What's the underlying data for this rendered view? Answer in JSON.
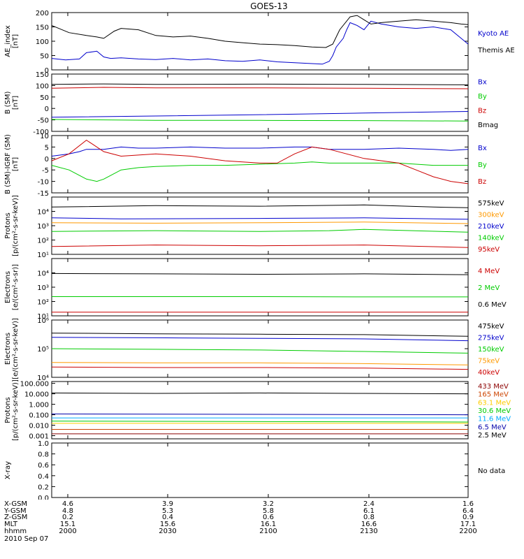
{
  "title": "GOES-13",
  "footer": {
    "date": "2010 Sep 07",
    "rows": [
      {
        "label": "X-GSM",
        "values": [
          "4.6",
          "3.9",
          "3.2",
          "2.4",
          "1.6"
        ]
      },
      {
        "label": "Y-GSM",
        "values": [
          "4.8",
          "5.3",
          "5.8",
          "6.1",
          "6.4"
        ]
      },
      {
        "label": "Z-GSM",
        "values": [
          "0.2",
          "0.4",
          "0.6",
          "0.8",
          "0.9"
        ]
      },
      {
        "label": "MLT",
        "values": [
          "15.1",
          "15.6",
          "16.1",
          "16.6",
          "17.1"
        ]
      },
      {
        "label": "hhmm",
        "values": [
          "2000",
          "2030",
          "2100",
          "2130",
          "2200"
        ]
      }
    ]
  },
  "chart_data": [
    {
      "type": "line",
      "id": "ae",
      "ylabel": "AE_index\n[nT]",
      "ylim": [
        0,
        200
      ],
      "yticks": [
        "0",
        "50",
        "100",
        "150",
        "200"
      ],
      "x_range": [
        "2000",
        "2200"
      ],
      "series": [
        {
          "name": "Kyoto AE",
          "color": "#0000cc",
          "x": [
            0,
            4,
            8,
            10,
            13,
            15,
            17,
            20,
            25,
            30,
            35,
            40,
            45,
            50,
            55,
            60,
            65,
            70,
            75,
            78,
            80,
            81,
            82,
            84,
            85,
            86,
            88,
            90,
            92,
            95,
            100,
            105,
            110,
            115,
            118,
            120
          ],
          "values": [
            40,
            35,
            38,
            60,
            65,
            45,
            40,
            42,
            38,
            36,
            40,
            35,
            38,
            32,
            30,
            35,
            28,
            25,
            22,
            20,
            30,
            50,
            80,
            110,
            140,
            165,
            155,
            140,
            170,
            160,
            150,
            145,
            150,
            140,
            110,
            90
          ]
        },
        {
          "name": "Themis AE",
          "color": "#000000",
          "x": [
            0,
            5,
            10,
            13,
            15,
            18,
            20,
            25,
            30,
            35,
            40,
            45,
            50,
            55,
            60,
            65,
            70,
            75,
            79,
            81,
            83,
            86,
            88,
            90,
            92,
            95,
            100,
            105,
            110,
            115,
            118,
            120
          ],
          "values": [
            155,
            130,
            120,
            115,
            110,
            135,
            145,
            140,
            120,
            115,
            118,
            110,
            100,
            95,
            90,
            88,
            85,
            80,
            78,
            90,
            140,
            185,
            190,
            175,
            160,
            165,
            170,
            175,
            170,
            165,
            160,
            158
          ]
        }
      ]
    },
    {
      "type": "line",
      "id": "b",
      "ylabel": "B (SM)\n[nT]",
      "ylim": [
        -100,
        150
      ],
      "yticks": [
        "-100",
        "-50",
        "0",
        "50",
        "100",
        "150"
      ],
      "series": [
        {
          "name": "Bx",
          "color": "#0000cc",
          "x": [
            0,
            30,
            60,
            90,
            120
          ],
          "values": [
            -38,
            -33,
            -27,
            -20,
            -13
          ]
        },
        {
          "name": "By",
          "color": "#00cc00",
          "x": [
            0,
            30,
            60,
            90,
            120
          ],
          "values": [
            -48,
            -52,
            -52,
            -53,
            -55
          ]
        },
        {
          "name": "Bz",
          "color": "#cc0000",
          "x": [
            0,
            15,
            30,
            60,
            90,
            120
          ],
          "values": [
            88,
            92,
            90,
            90,
            88,
            86
          ]
        },
        {
          "name": "Bmag",
          "color": "#000000",
          "x": [
            0,
            15,
            30,
            60,
            90,
            120
          ],
          "values": [
            105,
            107,
            105,
            106,
            105,
            103
          ]
        }
      ]
    },
    {
      "type": "line",
      "id": "dbigrf",
      "ylabel": "B (SM)-IGRF (SM)\n[nT]",
      "ylim": [
        -15,
        10
      ],
      "yticks": [
        "-15",
        "-10",
        "-5",
        "0",
        "5",
        "10"
      ],
      "series": [
        {
          "name": "Bx",
          "color": "#0000cc",
          "x": [
            0,
            5,
            8,
            10,
            15,
            20,
            25,
            30,
            40,
            50,
            60,
            70,
            75,
            80,
            90,
            100,
            110,
            115,
            120
          ],
          "values": [
            1,
            2,
            3,
            4,
            4,
            5,
            4.5,
            4.5,
            5,
            4.5,
            4.5,
            5,
            5,
            4,
            4,
            4.5,
            4,
            3.5,
            4
          ]
        },
        {
          "name": "By",
          "color": "#00cc00",
          "x": [
            0,
            5,
            10,
            13,
            15,
            20,
            25,
            30,
            40,
            50,
            60,
            70,
            75,
            80,
            90,
            100,
            110,
            120
          ],
          "values": [
            -3,
            -5,
            -9,
            -10,
            -9,
            -5,
            -4,
            -3.5,
            -3,
            -3,
            -2.5,
            -2,
            -1.5,
            -2,
            -2,
            -2,
            -3,
            -3
          ]
        },
        {
          "name": "Bz",
          "color": "#cc0000",
          "x": [
            0,
            5,
            10,
            12,
            15,
            20,
            25,
            30,
            35,
            40,
            50,
            55,
            60,
            65,
            70,
            75,
            80,
            90,
            100,
            105,
            110,
            115,
            120
          ],
          "values": [
            -1,
            2,
            8,
            6,
            3,
            1,
            1.5,
            2,
            1.5,
            1,
            -1,
            -1.5,
            -2,
            -2,
            2,
            5,
            4,
            0,
            -2,
            -5,
            -8,
            -10,
            -11
          ]
        }
      ]
    },
    {
      "type": "line",
      "id": "protons_low",
      "ylabel": "Protons\n[p/(cm²-s-sr-keV)]",
      "yscale": "log",
      "ylim": [
        10,
        100000
      ],
      "yticks": [
        "10¹",
        "10²",
        "10³",
        "10⁴"
      ],
      "series": [
        {
          "name": "575keV",
          "color": "#000000",
          "x": [
            0,
            30,
            60,
            90,
            110,
            120
          ],
          "values": [
            20000,
            25000,
            23000,
            28000,
            20000,
            18000
          ]
        },
        {
          "name": "300keV",
          "color": "#ff9900",
          "x": [
            0,
            30,
            60,
            90,
            120
          ],
          "values": [
            1600,
            1500,
            1600,
            1800,
            1400
          ]
        },
        {
          "name": "210keV",
          "color": "#0000cc",
          "x": [
            0,
            20,
            60,
            90,
            120
          ],
          "values": [
            3500,
            3000,
            3200,
            3500,
            2800
          ]
        },
        {
          "name": "140keV",
          "color": "#00cc00",
          "x": [
            0,
            30,
            60,
            80,
            90,
            120
          ],
          "values": [
            400,
            450,
            400,
            450,
            550,
            350
          ]
        },
        {
          "name": "95keV",
          "color": "#cc0000",
          "x": [
            0,
            30,
            60,
            90,
            120
          ],
          "values": [
            35,
            45,
            40,
            45,
            30
          ]
        }
      ]
    },
    {
      "type": "line",
      "id": "electrons_high",
      "ylabel": "Electrons\n[e/(cm²-s-sr)]",
      "yscale": "log",
      "ylim": [
        10,
        100000
      ],
      "yticks": [
        "10¹",
        "10²",
        "10³",
        "10⁴"
      ],
      "series": [
        {
          "name": "4 MeV",
          "color": "#cc0000",
          "x": [
            0,
            30,
            60,
            90,
            120
          ],
          "values": [
            18,
            18,
            18,
            18,
            18
          ]
        },
        {
          "name": "2 MeV",
          "color": "#00cc00",
          "x": [
            0,
            30,
            60,
            90,
            120
          ],
          "values": [
            220,
            220,
            220,
            210,
            210
          ]
        },
        {
          "name": "0.6 MeV",
          "color": "#000000",
          "x": [
            0,
            30,
            60,
            90,
            120
          ],
          "values": [
            9000,
            8500,
            8000,
            8500,
            7500
          ]
        }
      ]
    },
    {
      "type": "line",
      "id": "electrons_low",
      "ylabel": "Electrons\n[e/(cm²-s-sr-keV)]",
      "yscale": "log",
      "ylim": [
        10000,
        1000000
      ],
      "yticks": [
        "10⁴",
        "10⁵",
        "10⁶"
      ],
      "series": [
        {
          "name": "475keV",
          "color": "#000000",
          "x": [
            0,
            30,
            60,
            90,
            120
          ],
          "values": [
            350000,
            330000,
            320000,
            310000,
            270000
          ]
        },
        {
          "name": "275keV",
          "color": "#0000cc",
          "x": [
            0,
            30,
            60,
            90,
            120
          ],
          "values": [
            250000,
            240000,
            230000,
            220000,
            190000
          ]
        },
        {
          "name": "150keV",
          "color": "#00cc00",
          "x": [
            0,
            30,
            60,
            90,
            120
          ],
          "values": [
            100000,
            95000,
            90000,
            80000,
            70000
          ]
        },
        {
          "name": "75keV",
          "color": "#ff9900",
          "x": [
            0,
            30,
            60,
            90,
            120
          ],
          "values": [
            33000,
            32000,
            32000,
            30000,
            27000
          ]
        },
        {
          "name": "40keV",
          "color": "#cc0000",
          "x": [
            0,
            30,
            60,
            90,
            120
          ],
          "values": [
            23000,
            22000,
            22000,
            21000,
            19000
          ]
        }
      ]
    },
    {
      "type": "line",
      "id": "protons_high",
      "ylabel": "Protons\n[p/(cm²-s-sr-keV)]",
      "yscale": "log",
      "ylim": [
        0.0005,
        150
      ],
      "yticks": [
        "0.001",
        "0.010",
        "0.100",
        "1.000",
        "10.000",
        "100.000"
      ],
      "series": [
        {
          "name": "433 MeV",
          "color": "#8b0000",
          "x": [
            0,
            120
          ],
          "values": [
            0.0015,
            0.0015
          ]
        },
        {
          "name": "165 MeV",
          "color": "#cc4400",
          "x": [
            0,
            120
          ],
          "values": [
            0.004,
            0.004
          ]
        },
        {
          "name": "63.1 MeV",
          "color": "#ffcc00",
          "x": [
            0,
            120
          ],
          "values": [
            0.015,
            0.015
          ]
        },
        {
          "name": "30.6 MeV",
          "color": "#00cc00",
          "x": [
            0,
            120
          ],
          "values": [
            0.025,
            0.02
          ]
        },
        {
          "name": "11.6 MeV",
          "color": "#00aaff",
          "x": [
            0,
            120
          ],
          "values": [
            0.05,
            0.05
          ]
        },
        {
          "name": "6.5 MeV",
          "color": "#0000aa",
          "x": [
            0,
            120
          ],
          "values": [
            0.12,
            0.1
          ]
        },
        {
          "name": "2.5 MeV",
          "color": "#000000",
          "x": [
            0,
            30,
            60,
            90,
            120
          ],
          "values": [
            12,
            11,
            12,
            11,
            10
          ]
        }
      ]
    },
    {
      "type": "line",
      "id": "xray",
      "ylabel": "X-ray",
      "ylim": [
        0,
        1.0
      ],
      "yticks": [
        "0.0",
        "0.2",
        "0.4",
        "0.6",
        "0.8",
        "1.0"
      ],
      "annotation": "No data",
      "series": []
    }
  ]
}
